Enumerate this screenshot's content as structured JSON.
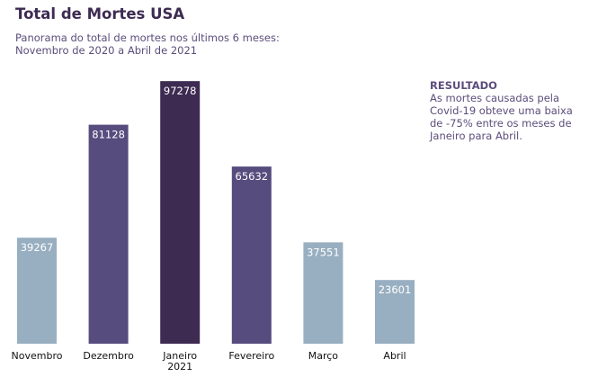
{
  "header": {
    "title": "Total de Mortes USA",
    "subtitle_lines": [
      "Panorama do total de mortes nos últimos 6 meses:",
      "Novembro de 2020 a Abril de 2021"
    ]
  },
  "annotation": {
    "heading": "RESULTADO",
    "body": "As mortes causadas pela Covid-19 obteve uma baixa de -75% entre os meses de Janeiro para Abril."
  },
  "chart_data": {
    "type": "bar",
    "title": "Total de Mortes USA",
    "categories": [
      "Novembro",
      "Dezembro",
      "Janeiro\n2021",
      "Fevereiro",
      "Março",
      "Abril"
    ],
    "values": [
      39267,
      81128,
      97278,
      65632,
      37551,
      23601
    ],
    "colors": [
      "#98afc1",
      "#574c7e",
      "#3d2b52",
      "#574c7e",
      "#98afc1",
      "#98afc1"
    ],
    "xlabel": "",
    "ylabel": "",
    "ylim": [
      0,
      100000
    ],
    "grid": false,
    "legend": "none"
  }
}
